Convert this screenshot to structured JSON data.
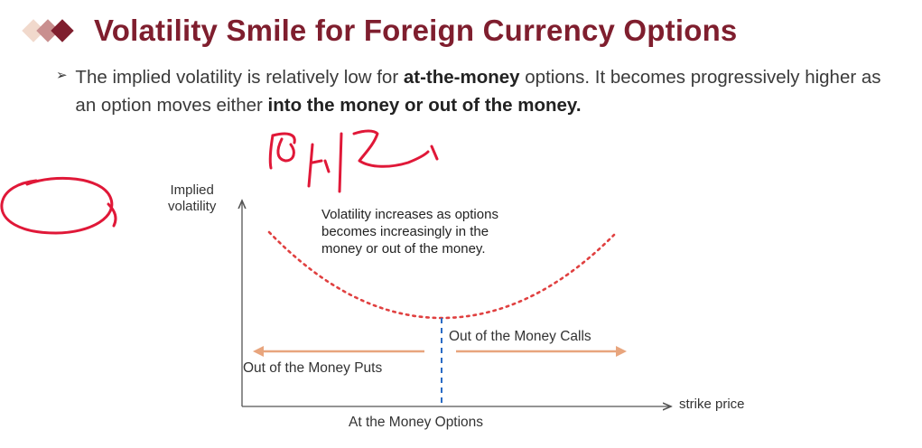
{
  "slide": {
    "title": "Volatility Smile for Foreign Currency Options",
    "bullet": {
      "text_1": "The implied volatility is relatively low for ",
      "bold_1": "at-the-money",
      "text_2": " options. It becomes progressively higher as an option moves either ",
      "bold_2": "into the money or out of the money."
    },
    "colors": {
      "title": "#7f1e2e",
      "diamond_dark": "#7f1e2e",
      "diamond_mid": "#c98f8f",
      "diamond_light": "#f1d9cc",
      "curve": "#e04040",
      "arrows": "#e8a57d",
      "atm_line": "#2b6cc4",
      "ink": "#e01838"
    }
  },
  "diagram": {
    "y_axis_label_1": "Implied",
    "y_axis_label_2": "volatility",
    "x_axis_label": "strike price",
    "annotation_1": "Volatility increases as options",
    "annotation_2": "becomes increasingly in the",
    "annotation_3": "money or out of the money.",
    "calls_label": "Out of the Money Calls",
    "puts_label": "Out of the Money Puts",
    "atm_label": "At the Money Options"
  },
  "handwriting": {
    "circled_number": "2",
    "note_icon": "handwritten-korean-note"
  }
}
